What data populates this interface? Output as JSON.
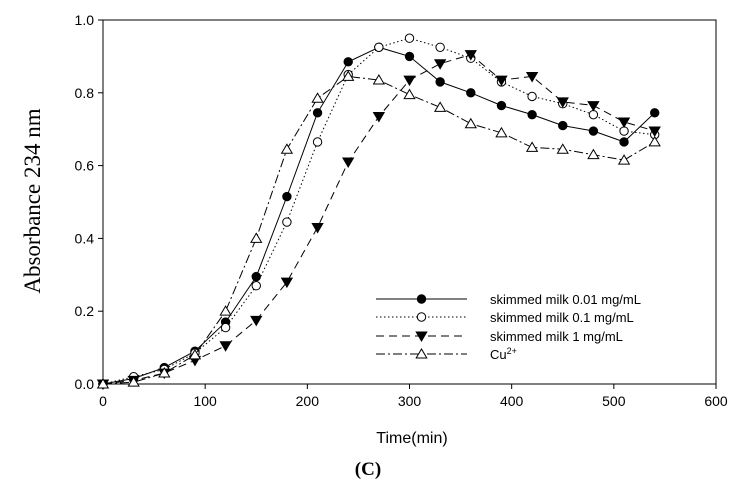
{
  "chart_data": {
    "type": "line",
    "title": "",
    "xlabel": "Time(min)",
    "ylabel": "Absorbance 234 nm",
    "panel_label": "(C)",
    "xlim": [
      0,
      600
    ],
    "ylim": [
      0,
      1.0
    ],
    "x_ticks": [
      0,
      100,
      200,
      300,
      400,
      500,
      600
    ],
    "x_tick_labels": [
      "0",
      "100",
      "200",
      "300",
      "400",
      "500",
      "600"
    ],
    "y_ticks": [
      0,
      0.2,
      0.4,
      0.6,
      0.8,
      1.0
    ],
    "y_tick_labels": [
      "0.0",
      "0.2",
      "0.4",
      "0.6",
      "0.8",
      "1.0"
    ],
    "grid": false,
    "legend_position": "bottom-right",
    "x": [
      0,
      30,
      60,
      90,
      120,
      150,
      180,
      210,
      240,
      270,
      300,
      330,
      360,
      390,
      420,
      450,
      480,
      510,
      540
    ],
    "series": [
      {
        "name": "skimmed milk 0.01 mg/mL",
        "name_base": "skimmed milk 0.01 mg/mL",
        "name_sup": "",
        "marker": "filled-circle",
        "dash": "solid",
        "values": [
          0.0,
          0.015,
          0.045,
          0.09,
          0.17,
          0.295,
          0.515,
          0.745,
          0.885,
          0.925,
          0.9,
          0.83,
          0.8,
          0.765,
          0.74,
          0.71,
          0.695,
          0.665,
          0.745
        ]
      },
      {
        "name": "skimmed milk 0.1 mg/mL",
        "name_base": "skimmed milk 0.1 mg/mL",
        "name_sup": "",
        "marker": "open-circle",
        "dash": "dotted",
        "values": [
          0.0,
          0.02,
          0.04,
          0.085,
          0.155,
          0.27,
          0.445,
          0.665,
          0.85,
          0.925,
          0.95,
          0.925,
          0.895,
          0.83,
          0.79,
          0.77,
          0.74,
          0.695,
          0.685
        ]
      },
      {
        "name": "skimmed milk 1 mg/mL",
        "name_base": "skimmed milk 1 mg/mL",
        "name_sup": "",
        "marker": "filled-triangle-down",
        "dash": "dashed",
        "values": [
          0.0,
          0.01,
          0.03,
          0.065,
          0.105,
          0.175,
          0.28,
          0.43,
          0.61,
          0.735,
          0.835,
          0.88,
          0.905,
          0.835,
          0.845,
          0.775,
          0.765,
          0.72,
          0.695
        ]
      },
      {
        "name": "Cu2+",
        "name_base": "Cu",
        "name_sup": "2+",
        "marker": "open-triangle-up",
        "dash": "dash-dot",
        "values": [
          0.0,
          0.005,
          0.03,
          0.08,
          0.2,
          0.4,
          0.645,
          0.785,
          0.845,
          0.835,
          0.795,
          0.76,
          0.715,
          0.69,
          0.65,
          0.645,
          0.63,
          0.615,
          0.665
        ]
      }
    ]
  }
}
